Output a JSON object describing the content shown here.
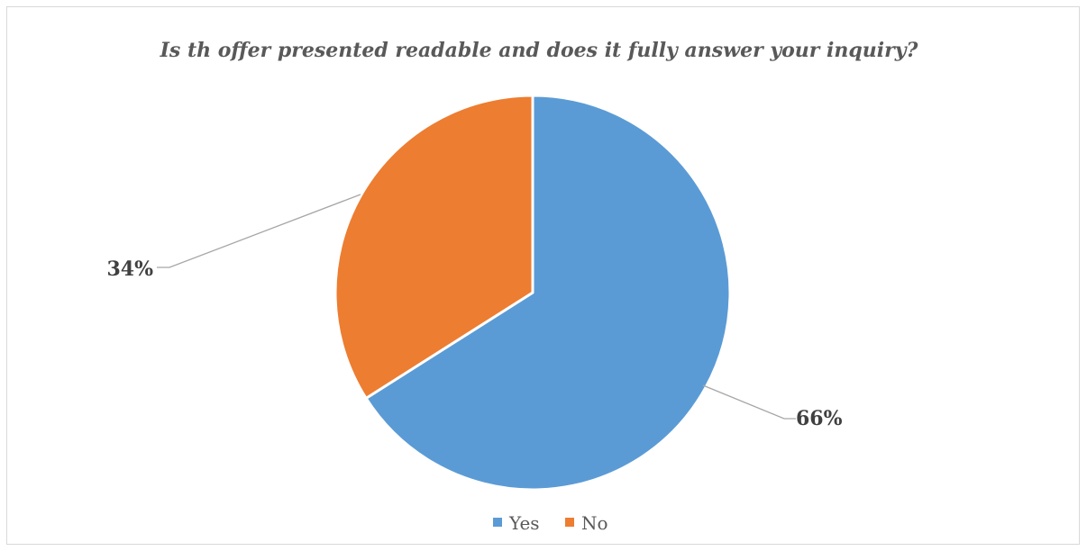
{
  "chart_data": {
    "type": "pie",
    "title": "Is th  offer presented readable and does it fully answer your inquiry?",
    "categories": [
      "Yes",
      "No"
    ],
    "values": [
      66,
      34
    ],
    "data_labels": [
      "66%",
      "34%"
    ],
    "colors": [
      "#5b9bd5",
      "#ed7d31"
    ],
    "legend_position": "bottom"
  }
}
